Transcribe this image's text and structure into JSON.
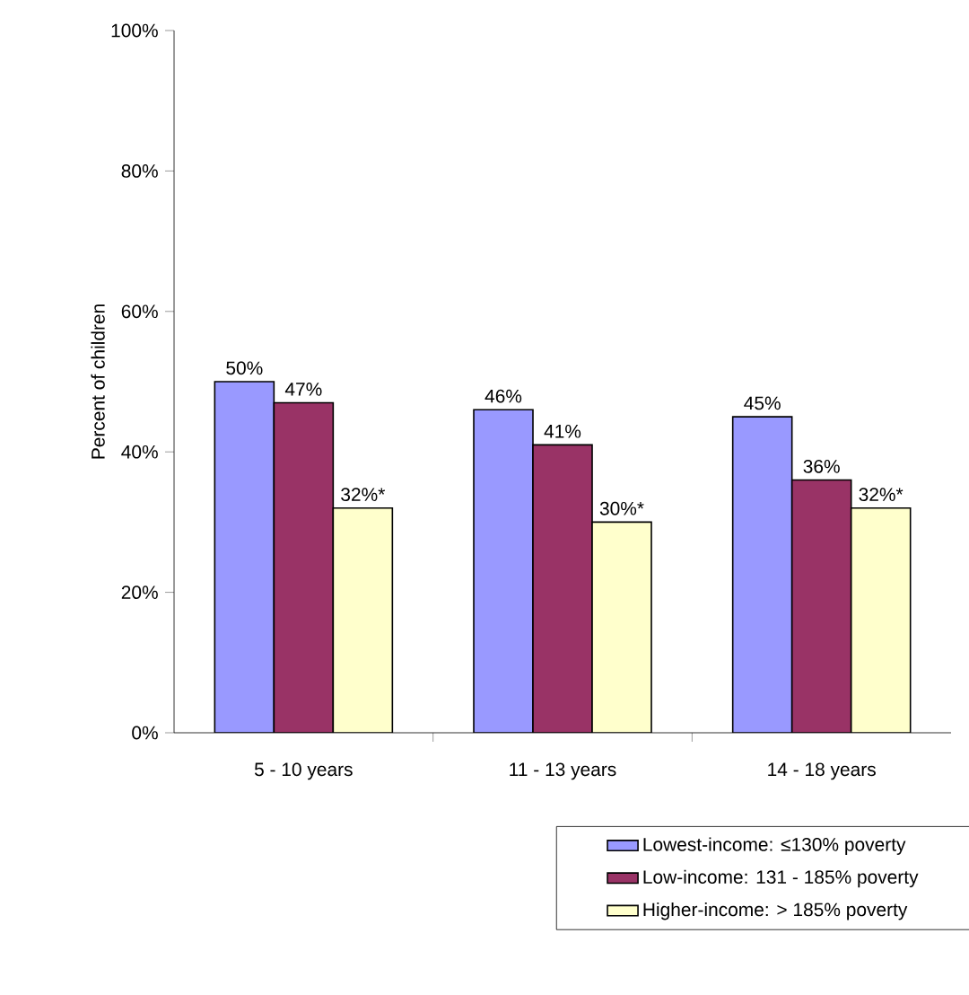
{
  "chart_data": {
    "type": "bar",
    "ylabel": "Percent of children",
    "categories": [
      "5 - 10 years",
      "11 - 13 years",
      "14 - 18 years"
    ],
    "series": [
      {
        "name": "Lowest-income:  ≤130% poverty",
        "color": "#9999ff",
        "values": [
          50,
          46,
          45
        ],
        "value_labels": [
          "50%",
          "46%",
          "45%"
        ]
      },
      {
        "name": "Low-income: 131 - 185% poverty",
        "color": "#993366",
        "values": [
          47,
          41,
          36
        ],
        "value_labels": [
          "47%",
          "41%",
          "36%"
        ]
      },
      {
        "name": "Higher-income: > 185% poverty",
        "color": "#ffffcc",
        "values": [
          32,
          30,
          32
        ],
        "value_labels": [
          "32%*",
          "30%*",
          "32%*"
        ]
      }
    ],
    "ylim": [
      0,
      100
    ],
    "yticks": [
      {
        "value": 0,
        "label": "0%"
      },
      {
        "value": 20,
        "label": "20%"
      },
      {
        "value": 40,
        "label": "40%"
      },
      {
        "value": 60,
        "label": "60%"
      },
      {
        "value": 80,
        "label": "80%"
      },
      {
        "value": 100,
        "label": "100%"
      }
    ],
    "grid": false,
    "legend": "bottom"
  }
}
